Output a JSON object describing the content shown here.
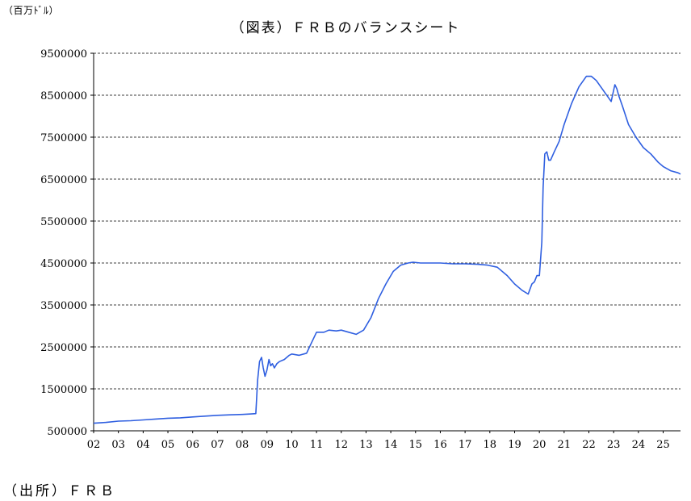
{
  "unit_label": "（百万ﾄﾞﾙ）",
  "source_label": "（出所）ＦＲＢ",
  "colors": {
    "line": "#2f5fe0",
    "grid": "#000000",
    "axis": "#000000"
  },
  "chart_data": {
    "type": "line",
    "title": "（図表）ＦＲＢのバランスシート",
    "xlabel": "",
    "ylabel": "",
    "x_tick_labels": [
      "02",
      "03",
      "04",
      "05",
      "06",
      "07",
      "08",
      "09",
      "10",
      "11",
      "12",
      "13",
      "14",
      "15",
      "16",
      "17",
      "18",
      "19",
      "20",
      "21",
      "22",
      "23",
      "24",
      "25"
    ],
    "xlim": [
      2002.0,
      2025.7
    ],
    "y_tick_values": [
      500000,
      1500000,
      2500000,
      3500000,
      4500000,
      5500000,
      6500000,
      7500000,
      8500000,
      9500000
    ],
    "y_tick_labels": [
      "500000",
      "1500000",
      "2500000",
      "3500000",
      "4500000",
      "5500000",
      "6500000",
      "7500000",
      "8500000",
      "9500000"
    ],
    "ylim": [
      500000,
      9500000
    ],
    "grid": "horizontal-dashed",
    "series": [
      {
        "x": [
          2002.0,
          2002.5,
          2003.0,
          2003.5,
          2004.0,
          2004.5,
          2005.0,
          2005.5,
          2006.0,
          2006.5,
          2007.0,
          2007.5,
          2008.0,
          2008.3,
          2008.55,
          2008.62,
          2008.7,
          2008.78,
          2008.85,
          2008.92,
          2009.0,
          2009.08,
          2009.15,
          2009.22,
          2009.3,
          2009.4,
          2009.5,
          2009.7,
          2009.9,
          2010.0,
          2010.3,
          2010.6,
          2010.8,
          2011.0,
          2011.3,
          2011.5,
          2011.8,
          2012.0,
          2012.3,
          2012.6,
          2012.9,
          2013.2,
          2013.5,
          2013.8,
          2014.1,
          2014.4,
          2014.7,
          2014.9,
          2015.2,
          2015.6,
          2016.0,
          2016.5,
          2017.0,
          2017.5,
          2017.9,
          2018.3,
          2018.7,
          2019.0,
          2019.3,
          2019.55,
          2019.7,
          2019.8,
          2019.9,
          2020.0,
          2020.1,
          2020.15,
          2020.22,
          2020.3,
          2020.38,
          2020.45,
          2020.6,
          2020.8,
          2021.0,
          2021.3,
          2021.6,
          2021.9,
          2022.1,
          2022.3,
          2022.6,
          2022.9,
          2023.05,
          2023.13,
          2023.2,
          2023.35,
          2023.6,
          2023.9,
          2024.2,
          2024.5,
          2024.8,
          2025.0,
          2025.3,
          2025.6,
          2025.7
        ],
        "values": [
          680000,
          700000,
          730000,
          740000,
          760000,
          780000,
          800000,
          810000,
          830000,
          850000,
          870000,
          880000,
          890000,
          900000,
          910000,
          1700000,
          2150000,
          2250000,
          2000000,
          1800000,
          1950000,
          2200000,
          2050000,
          2100000,
          2000000,
          2100000,
          2150000,
          2200000,
          2300000,
          2330000,
          2300000,
          2350000,
          2600000,
          2850000,
          2850000,
          2900000,
          2880000,
          2900000,
          2850000,
          2800000,
          2900000,
          3200000,
          3650000,
          4000000,
          4300000,
          4450000,
          4500000,
          4520000,
          4500000,
          4500000,
          4500000,
          4480000,
          4480000,
          4470000,
          4450000,
          4400000,
          4200000,
          4000000,
          3850000,
          3760000,
          4000000,
          4050000,
          4200000,
          4200000,
          5000000,
          6300000,
          7100000,
          7150000,
          6950000,
          6950000,
          7150000,
          7400000,
          7800000,
          8300000,
          8700000,
          8950000,
          8950000,
          8850000,
          8600000,
          8350000,
          8750000,
          8650000,
          8500000,
          8250000,
          7800000,
          7500000,
          7250000,
          7100000,
          6900000,
          6800000,
          6700000,
          6650000,
          6620000
        ]
      }
    ]
  }
}
